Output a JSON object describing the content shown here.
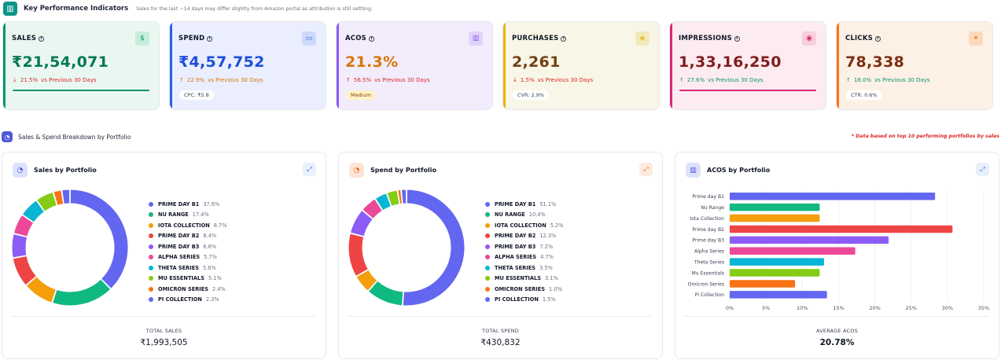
{
  "header": {
    "title": "Key Performance Indicators",
    "note": "Sales for the last ~14 days may differ slightly from Amazon portal as attribution is still settling."
  },
  "kpis": [
    {
      "label": "SALES",
      "value": "₹21,54,071",
      "arrow": "↓",
      "change": "21.5%",
      "compare": "vs Previous 30 Days",
      "pill": "",
      "icon": "dollar-icon",
      "bg": "#eaf7f1",
      "accent": "#059669",
      "valColor": "#047857",
      "chgColor": "#dc2626",
      "iconBg": "#c5eedc",
      "bar": 1
    },
    {
      "label": "SPEND",
      "value": "₹4,57,752",
      "arrow": "↑",
      "change": "22.9%",
      "compare": "vs Previous 30 Days",
      "pill": "CPC: ₹5.8",
      "icon": "money-icon",
      "bg": "#eaeefe",
      "accent": "#2563eb",
      "valColor": "#1d4ed8",
      "chgColor": "#d97706",
      "iconBg": "#cdd8fb",
      "bar": 0
    },
    {
      "label": "ACOS",
      "value": "21.3%",
      "arrow": "↑",
      "change": "56.5%",
      "compare": "vs Previous 30 Days",
      "pill": "Medium",
      "icon": "bar-chart-icon",
      "bg": "#f2ecfd",
      "accent": "#8b5cf6",
      "valColor": "#d97706",
      "chgColor": "#dc2626",
      "iconBg": "#e0d3fb",
      "bar": 0
    },
    {
      "label": "PURCHASES",
      "value": "2,261",
      "arrow": "↓",
      "change": "1.5%",
      "compare": "vs Previous 30 Days",
      "pill": "CVR: 2.9%",
      "icon": "box-icon",
      "bg": "#f8f6e6",
      "accent": "#eab308",
      "valColor": "#713f12",
      "chgColor": "#dc2626",
      "iconBg": "#f0ebb8",
      "bar": 0
    },
    {
      "label": "IMPRESSIONS",
      "value": "1,33,16,250",
      "arrow": "↑",
      "change": "27.6%",
      "compare": "vs Previous 30 Days",
      "pill": "",
      "icon": "eye-icon",
      "bg": "#fcebf1",
      "accent": "#db2777",
      "valColor": "#7f1d1d",
      "chgColor": "#059669",
      "iconBg": "#f8cfdc",
      "bar": 1
    },
    {
      "label": "CLICKS",
      "value": "78,338",
      "arrow": "↑",
      "change": "18.0%",
      "compare": "vs Previous 30 Days",
      "pill": "CTR: 0.6%",
      "icon": "cursor-click-icon",
      "bg": "#fdf1e6",
      "accent": "#f97316",
      "valColor": "#7c2d12",
      "chgColor": "#059669",
      "iconBg": "#fbd9bd",
      "bar": 0
    }
  ],
  "section": {
    "title": "Sales & Spend Breakdown by Portfolio",
    "note": "* Data based on top 10 performing portfolios by sales"
  },
  "colors": [
    "#6366f1",
    "#10b981",
    "#f59e0b",
    "#ef4444",
    "#8b5cf6",
    "#ec4899",
    "#06b6d4",
    "#84cc16",
    "#f97316",
    "#6366f1"
  ],
  "sales_card": {
    "title": "Sales by Portfolio",
    "total_label": "TOTAL SALES",
    "total_value": "₹1,993,505",
    "legend": [
      {
        "name": "PRIME DAY B1",
        "pct": "37.6%"
      },
      {
        "name": "NU RANGE",
        "pct": "17.4%"
      },
      {
        "name": "IOTA COLLECTION",
        "pct": "8.7%"
      },
      {
        "name": "PRIME DAY B2",
        "pct": "8.4%"
      },
      {
        "name": "PRIME DAY B3",
        "pct": "6.8%"
      },
      {
        "name": "ALPHA SERIES",
        "pct": "5.7%"
      },
      {
        "name": "THETA SERIES",
        "pct": "5.6%"
      },
      {
        "name": "MU ESSENTIALS",
        "pct": "5.1%"
      },
      {
        "name": "OMICRON SERIES",
        "pct": "2.4%"
      },
      {
        "name": "PI COLLECTION",
        "pct": "2.3%"
      }
    ]
  },
  "spend_card": {
    "title": "Spend by Portfolio",
    "total_label": "TOTAL SPEND",
    "total_value": "₹430,832",
    "legend": [
      {
        "name": "PRIME DAY B1",
        "pct": "51.1%"
      },
      {
        "name": "NU RANGE",
        "pct": "10.4%"
      },
      {
        "name": "IOTA COLLECTION",
        "pct": "5.2%"
      },
      {
        "name": "PRIME DAY B2",
        "pct": "12.3%"
      },
      {
        "name": "PRIME DAY B3",
        "pct": "7.2%"
      },
      {
        "name": "ALPHA SERIES",
        "pct": "4.7%"
      },
      {
        "name": "THETA SERIES",
        "pct": "3.5%"
      },
      {
        "name": "MU ESSENTIALS",
        "pct": "3.1%"
      },
      {
        "name": "OMICRON SERIES",
        "pct": "1.0%"
      },
      {
        "name": "PI COLLECTION",
        "pct": "1.5%"
      }
    ]
  },
  "acos_card": {
    "title": "ACOS by Portfolio",
    "total_label": "AVERAGE ACOS",
    "total_value": "20.78%"
  },
  "chart_data": [
    {
      "type": "pie",
      "title": "Sales by Portfolio",
      "categories": [
        "PRIME DAY B1",
        "NU RANGE",
        "IOTA COLLECTION",
        "PRIME DAY B2",
        "PRIME DAY B3",
        "ALPHA SERIES",
        "THETA SERIES",
        "MU ESSENTIALS",
        "OMICRON SERIES",
        "PI COLLECTION"
      ],
      "values": [
        37.6,
        17.4,
        8.7,
        8.4,
        6.8,
        5.7,
        5.6,
        5.1,
        2.4,
        2.3
      ]
    },
    {
      "type": "pie",
      "title": "Spend by Portfolio",
      "categories": [
        "PRIME DAY B1",
        "NU RANGE",
        "IOTA COLLECTION",
        "PRIME DAY B2",
        "PRIME DAY B3",
        "ALPHA SERIES",
        "THETA SERIES",
        "MU ESSENTIALS",
        "OMICRON SERIES",
        "PI COLLECTION"
      ],
      "values": [
        51.1,
        10.4,
        5.2,
        12.3,
        7.2,
        4.7,
        3.5,
        3.1,
        1.0,
        1.5
      ]
    },
    {
      "type": "bar",
      "orientation": "horizontal",
      "title": "ACOS by Portfolio",
      "categories": [
        "Prime day B1",
        "Nu Range",
        "Iota Collection",
        "Prime day B2",
        "Prime day B3",
        "Alpha Series",
        "Theta Series",
        "Mu Essentials",
        "Omicron Series",
        "Pi Collection"
      ],
      "values": [
        28.3,
        12.4,
        12.4,
        30.7,
        21.9,
        17.3,
        13.0,
        12.4,
        9.0,
        13.4
      ],
      "xlim": [
        0,
        35
      ],
      "xticks": [
        "0%",
        "5%",
        "10%",
        "15%",
        "20%",
        "25%",
        "30%",
        "35%"
      ],
      "grid": true
    }
  ]
}
